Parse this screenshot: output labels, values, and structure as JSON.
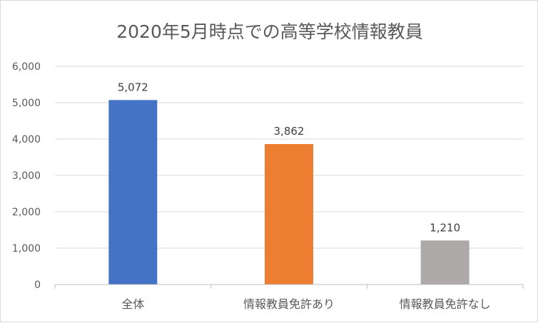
{
  "chart_data": {
    "type": "bar",
    "title": "2020年5月時点での高等学校情報教員",
    "categories": [
      "全体",
      "情報教員免許あり",
      "情報教員免許なし"
    ],
    "values": [
      5072,
      3862,
      1210
    ],
    "data_labels": [
      "5,072",
      "3,862",
      "1,210"
    ],
    "colors": [
      "#4472c4",
      "#ed7d31",
      "#aeaaaa"
    ],
    "ylim": [
      0,
      6000
    ],
    "yticks": [
      0,
      1000,
      2000,
      3000,
      4000,
      5000,
      6000
    ],
    "ytick_labels": [
      "0",
      "1,000",
      "2,000",
      "3,000",
      "4,000",
      "5,000",
      "6,000"
    ],
    "grid": true,
    "legend": false
  }
}
